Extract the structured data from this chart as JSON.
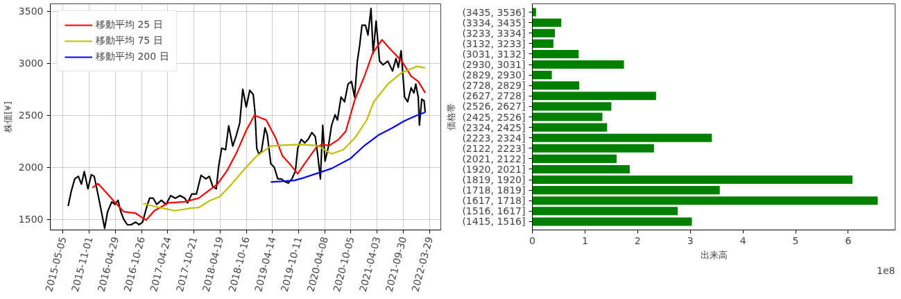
{
  "chart_data": [
    {
      "type": "line",
      "ylabel": "株価[¥]",
      "legend": "top left",
      "grid": true,
      "xlim": [
        "2015-02-06",
        "2022-06-15"
      ],
      "ylim": [
        1400,
        3570
      ],
      "xticks": [
        "2015-05-05",
        "2015-11-01",
        "2016-04-29",
        "2016-10-26",
        "2017-04-24",
        "2017-10-21",
        "2018-04-19",
        "2018-10-16",
        "2019-04-14",
        "2019-10-11",
        "2020-04-08",
        "2020-10-05",
        "2021-04-03",
        "2021-09-30",
        "2022-03-29"
      ],
      "yticks": [
        1500,
        2000,
        2500,
        3000,
        3500
      ],
      "series": [
        {
          "color": "#000000",
          "x": [
            "2015-06-09",
            "2015-06-30",
            "2015-07-24",
            "2015-08-18",
            "2015-09-08",
            "2015-09-28",
            "2015-10-23",
            "2015-11-15",
            "2015-12-05",
            "2015-12-27",
            "2016-01-14",
            "2016-02-15",
            "2016-03-06",
            "2016-04-04",
            "2016-04-26",
            "2016-05-17",
            "2016-06-05",
            "2016-06-26",
            "2016-07-20",
            "2016-08-14",
            "2016-09-15",
            "2016-10-09",
            "2016-11-02",
            "2016-11-26",
            "2016-12-20",
            "2017-01-14",
            "2017-02-07",
            "2017-03-11",
            "2017-04-12",
            "2017-05-14",
            "2017-06-15",
            "2017-07-18",
            "2017-08-19",
            "2017-09-07",
            "2017-10-06",
            "2017-11-07",
            "2017-12-09",
            "2018-01-11",
            "2018-02-04",
            "2018-02-28",
            "2018-03-24",
            "2018-04-09",
            "2018-04-30",
            "2018-05-27",
            "2018-06-17",
            "2018-07-15",
            "2018-08-08",
            "2018-09-01",
            "2018-09-22",
            "2018-10-16",
            "2018-11-09",
            "2018-12-03",
            "2018-12-15",
            "2018-12-27",
            "2019-01-12",
            "2019-01-29",
            "2019-02-22",
            "2019-03-10",
            "2019-04-03",
            "2019-04-27",
            "2019-05-21",
            "2019-06-14",
            "2019-07-08",
            "2019-08-02",
            "2019-08-26",
            "2019-09-19",
            "2019-10-05",
            "2019-10-29",
            "2019-11-22",
            "2019-12-16",
            "2020-01-10",
            "2020-02-03",
            "2020-02-19",
            "2020-03-09",
            "2020-03-25",
            "2020-04-10",
            "2020-05-01",
            "2020-05-25",
            "2020-06-18",
            "2020-07-04",
            "2020-07-29",
            "2020-08-22",
            "2020-09-15",
            "2020-10-09",
            "2020-10-30",
            "2020-11-18",
            "2020-12-04",
            "2020-12-20",
            "2021-01-13",
            "2021-01-30",
            "2021-02-20",
            "2021-03-07",
            "2021-03-27",
            "2021-04-20",
            "2021-05-14",
            "2021-06-16",
            "2021-07-18",
            "2021-08-11",
            "2021-08-27",
            "2021-09-15",
            "2021-10-09",
            "2021-10-30",
            "2021-11-23",
            "2021-12-12",
            "2021-12-25",
            "2022-01-11",
            "2022-01-19",
            "2022-02-04",
            "2022-02-20",
            "2022-02-28"
          ],
          "values": [
            1630,
            1770,
            1890,
            1915,
            1840,
            1960,
            1795,
            1930,
            1915,
            1770,
            1645,
            1415,
            1575,
            1670,
            1645,
            1685,
            1575,
            1500,
            1450,
            1450,
            1475,
            1450,
            1475,
            1600,
            1705,
            1705,
            1645,
            1685,
            1645,
            1730,
            1705,
            1730,
            1705,
            1660,
            1745,
            1745,
            1925,
            1890,
            1915,
            1815,
            1795,
            2010,
            2185,
            2170,
            2400,
            2205,
            2305,
            2425,
            2750,
            2580,
            2740,
            2700,
            2530,
            2185,
            2125,
            2160,
            2380,
            2310,
            2035,
            2000,
            1890,
            1890,
            1865,
            1850,
            1890,
            1965,
            2185,
            2270,
            2235,
            2270,
            2335,
            2295,
            2125,
            1890,
            2405,
            2060,
            2185,
            2405,
            2505,
            2455,
            2675,
            2630,
            2800,
            2825,
            2675,
            3020,
            3170,
            3365,
            3365,
            3270,
            3525,
            3095,
            3405,
            3020,
            2985,
            3020,
            2925,
            3045,
            2960,
            3120,
            2675,
            2630,
            2765,
            2715,
            2800,
            2675,
            2405,
            2655,
            2640,
            2530
          ]
        },
        {
          "name": "移動平均 25 日",
          "color": "#ff0000",
          "x": [
            "2015-11-23",
            "2016-01-01",
            "2016-02-19",
            "2016-04-23",
            "2016-06-26",
            "2016-09-15",
            "2016-11-26",
            "2017-01-22",
            "2017-04-28",
            "2017-08-19",
            "2017-11-23",
            "2018-04-01",
            "2018-06-04",
            "2018-08-08",
            "2018-10-16",
            "2018-12-11",
            "2019-03-02",
            "2019-05-05",
            "2019-06-22",
            "2019-08-10",
            "2019-10-05",
            "2019-12-16",
            "2020-02-11",
            "2020-03-22",
            "2020-05-09",
            "2020-07-13",
            "2020-08-30",
            "2020-11-02",
            "2021-01-06",
            "2021-03-03",
            "2021-05-06",
            "2021-07-02",
            "2021-09-20",
            "2021-11-23",
            "2022-01-11",
            "2022-02-28"
          ],
          "values": [
            1805,
            1845,
            1770,
            1670,
            1575,
            1560,
            1495,
            1585,
            1660,
            1670,
            1705,
            1840,
            1965,
            2135,
            2355,
            2500,
            2455,
            2285,
            2110,
            2035,
            1940,
            2085,
            2195,
            2220,
            2210,
            2270,
            2345,
            2655,
            2875,
            3095,
            3225,
            3135,
            3020,
            2875,
            2825,
            2715
          ]
        },
        {
          "name": "移動平均 75 日",
          "color": "#bfbf00",
          "x": [
            "2016-11-06",
            "2017-02-07",
            "2017-06-15",
            "2017-10-06",
            "2017-11-23",
            "2018-02-12",
            "2018-04-17",
            "2018-07-07",
            "2018-10-08",
            "2018-12-27",
            "2019-04-03",
            "2019-07-08",
            "2019-10-29",
            "2020-02-19",
            "2020-05-25",
            "2020-08-14",
            "2020-11-02",
            "2021-01-22",
            "2021-03-11",
            "2021-06-16",
            "2021-09-20",
            "2022-01-03",
            "2022-02-28"
          ],
          "values": [
            1655,
            1620,
            1585,
            1610,
            1615,
            1685,
            1720,
            1840,
            1990,
            2110,
            2205,
            2215,
            2220,
            2210,
            2130,
            2170,
            2285,
            2455,
            2630,
            2800,
            2910,
            2970,
            2955
          ]
        },
        {
          "name": "移動平均 200 日",
          "color": "#0000ff",
          "x": [
            "2019-04-03",
            "2019-09-11",
            "2019-11-14",
            "2020-02-19",
            "2020-05-25",
            "2020-10-01",
            "2021-01-06",
            "2021-04-12",
            "2021-07-18",
            "2021-10-06",
            "2021-12-25",
            "2022-02-28"
          ],
          "values": [
            1860,
            1875,
            1900,
            1945,
            1990,
            2085,
            2210,
            2310,
            2380,
            2445,
            2495,
            2530
          ]
        }
      ]
    },
    {
      "type": "bar",
      "orientation": "horizontal",
      "xlabel": "出来高",
      "ylabel": "価格帯",
      "grid": false,
      "color": "#008000",
      "categories": [
        "(3435, 3536]",
        "(3334, 3435]",
        "(3233, 3334]",
        "(3132, 3233]",
        "(3031, 3132]",
        "(2930, 3031]",
        "(2829, 2930]",
        "(2728, 2829]",
        "(2627, 2728]",
        "(2526, 2627]",
        "(2425, 2526]",
        "(2324, 2425]",
        "(2223, 2324]",
        "(2122, 2223]",
        "(2021, 2122]",
        "(1920, 2021]",
        "(1819, 1920]",
        "(1718, 1819]",
        "(1617, 1718]",
        "(1516, 1617]",
        "(1415, 1516]"
      ],
      "values": [
        0.07,
        0.55,
        0.43,
        0.4,
        0.88,
        1.74,
        0.37,
        0.89,
        2.35,
        1.5,
        1.33,
        1.42,
        3.41,
        2.31,
        1.6,
        1.85,
        6.08,
        3.56,
        6.56,
        2.76,
        3.03
      ],
      "xlim": [
        0,
        6.89
      ],
      "xticks": [
        0,
        1,
        2,
        3,
        4,
        5,
        6
      ],
      "annotations": [
        "1e8"
      ]
    }
  ]
}
